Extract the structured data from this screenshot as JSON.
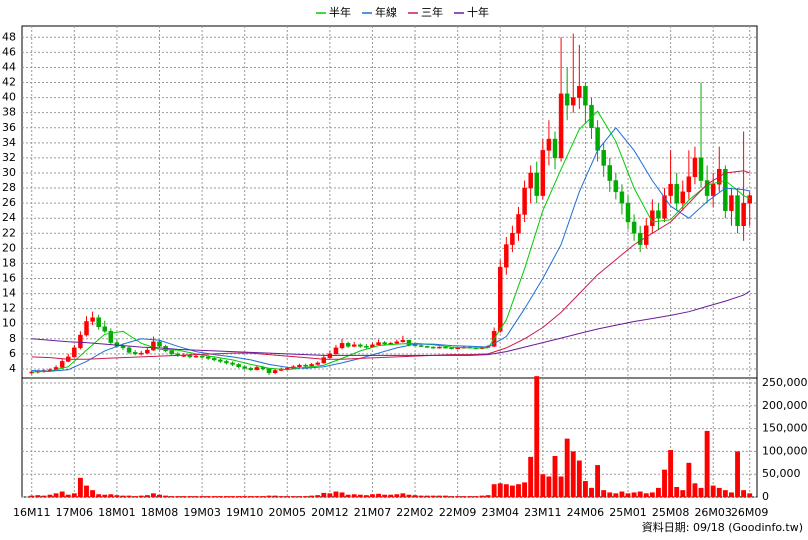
{
  "chart_data": [
    {
      "type": "candlestick",
      "xlim": [
        -1.6,
        119.2
      ],
      "ylim": [
        2.8,
        49.5
      ],
      "yticks": [
        4,
        6,
        8,
        10,
        12,
        14,
        16,
        18,
        20,
        22,
        24,
        26,
        28,
        30,
        32,
        34,
        36,
        38,
        40,
        42,
        44,
        46,
        48
      ],
      "grid": true,
      "legend": "top",
      "up_color": "#ff0000",
      "down_color": "#00aa00",
      "ohlc": [
        [
          3.5,
          3.8,
          3.3,
          3.6
        ],
        [
          3.6,
          3.9,
          3.4,
          3.7
        ],
        [
          3.7,
          4.0,
          3.5,
          3.8
        ],
        [
          3.8,
          4.1,
          3.6,
          3.9
        ],
        [
          3.9,
          4.5,
          3.8,
          4.2
        ],
        [
          4.2,
          5.3,
          4.1,
          5.0
        ],
        [
          5.0,
          6.0,
          4.9,
          5.6
        ],
        [
          5.6,
          7.2,
          5.5,
          6.8
        ],
        [
          6.8,
          9.0,
          6.6,
          8.5
        ],
        [
          8.5,
          11.0,
          8.3,
          10.3
        ],
        [
          10.3,
          11.6,
          9.8,
          10.8
        ],
        [
          10.8,
          11.2,
          9.2,
          9.6
        ],
        [
          9.6,
          10.4,
          8.8,
          9.0
        ],
        [
          9.0,
          9.4,
          7.2,
          7.5
        ],
        [
          7.5,
          7.9,
          6.8,
          7.0
        ],
        [
          7.0,
          7.4,
          6.5,
          6.8
        ],
        [
          6.8,
          7.0,
          6.0,
          6.2
        ],
        [
          6.2,
          6.5,
          5.8,
          6.0
        ],
        [
          6.0,
          6.4,
          5.8,
          6.1
        ],
        [
          6.1,
          6.9,
          6.0,
          6.5
        ],
        [
          6.5,
          8.3,
          6.4,
          7.6
        ],
        [
          7.6,
          7.8,
          6.8,
          7.0
        ],
        [
          7.0,
          7.2,
          6.2,
          6.4
        ],
        [
          6.4,
          6.6,
          5.8,
          6.0
        ],
        [
          6.0,
          6.2,
          5.6,
          5.8
        ],
        [
          5.8,
          6.1,
          5.6,
          5.8
        ],
        [
          5.8,
          6.0,
          5.4,
          5.6
        ],
        [
          5.6,
          5.9,
          5.5,
          5.7
        ],
        [
          5.7,
          5.9,
          5.4,
          5.6
        ],
        [
          5.6,
          5.8,
          5.2,
          5.4
        ],
        [
          5.4,
          5.6,
          5.0,
          5.2
        ],
        [
          5.2,
          5.4,
          4.8,
          5.0
        ],
        [
          5.0,
          5.2,
          4.6,
          4.8
        ],
        [
          4.8,
          5.0,
          4.4,
          4.6
        ],
        [
          4.6,
          4.8,
          4.1,
          4.3
        ],
        [
          4.3,
          4.5,
          3.9,
          4.1
        ],
        [
          4.1,
          4.3,
          3.7,
          3.9
        ],
        [
          3.9,
          4.5,
          3.8,
          4.2
        ],
        [
          4.2,
          4.4,
          3.8,
          4.0
        ],
        [
          4.0,
          4.1,
          3.2,
          3.5
        ],
        [
          3.5,
          4.0,
          3.3,
          3.8
        ],
        [
          3.8,
          4.2,
          3.7,
          4.0
        ],
        [
          4.0,
          4.3,
          3.9,
          4.1
        ],
        [
          4.1,
          4.5,
          4.0,
          4.3
        ],
        [
          4.3,
          4.7,
          4.2,
          4.5
        ],
        [
          4.5,
          4.7,
          4.2,
          4.4
        ],
        [
          4.4,
          4.8,
          4.3,
          4.6
        ],
        [
          4.6,
          5.0,
          4.5,
          4.8
        ],
        [
          4.8,
          5.9,
          4.7,
          5.5
        ],
        [
          5.5,
          6.4,
          5.4,
          6.0
        ],
        [
          6.0,
          7.2,
          5.9,
          6.8
        ],
        [
          6.8,
          8.0,
          6.6,
          7.4
        ],
        [
          7.4,
          7.6,
          6.8,
          7.0
        ],
        [
          7.0,
          7.6,
          6.9,
          7.2
        ],
        [
          7.2,
          7.4,
          6.8,
          7.0
        ],
        [
          7.0,
          7.3,
          6.7,
          6.9
        ],
        [
          6.9,
          7.5,
          6.8,
          7.2
        ],
        [
          7.2,
          7.9,
          7.1,
          7.5
        ],
        [
          7.5,
          7.7,
          7.1,
          7.3
        ],
        [
          7.3,
          7.6,
          7.2,
          7.4
        ],
        [
          7.4,
          7.9,
          7.3,
          7.6
        ],
        [
          7.6,
          8.4,
          7.5,
          7.8
        ],
        [
          7.8,
          7.9,
          7.0,
          7.2
        ],
        [
          7.2,
          7.4,
          7.0,
          7.1
        ],
        [
          7.1,
          7.3,
          6.9,
          7.0
        ],
        [
          7.0,
          7.1,
          6.8,
          6.9
        ],
        [
          6.9,
          7.0,
          6.7,
          6.8
        ],
        [
          6.8,
          7.0,
          6.7,
          6.9
        ],
        [
          6.9,
          7.0,
          6.7,
          6.8
        ],
        [
          6.8,
          6.9,
          6.6,
          6.7
        ],
        [
          6.7,
          6.9,
          6.6,
          6.8
        ],
        [
          6.8,
          7.0,
          6.7,
          6.9
        ],
        [
          6.9,
          7.0,
          6.7,
          6.8
        ],
        [
          6.8,
          6.9,
          6.6,
          6.7
        ],
        [
          6.7,
          7.0,
          6.6,
          6.9
        ],
        [
          6.9,
          7.2,
          6.8,
          7.0
        ],
        [
          7.0,
          9.5,
          6.9,
          9.0
        ],
        [
          9.0,
          18.5,
          8.8,
          17.5
        ],
        [
          17.5,
          21.5,
          16.5,
          20.5
        ],
        [
          20.5,
          23.0,
          19.5,
          22.0
        ],
        [
          22.0,
          25.5,
          21.0,
          24.5
        ],
        [
          24.5,
          29.0,
          23.5,
          28.0
        ],
        [
          28.0,
          31.0,
          26.0,
          30.0
        ],
        [
          30.0,
          31.5,
          26.0,
          27.0
        ],
        [
          27.0,
          34.5,
          26.5,
          33.0
        ],
        [
          33.0,
          37.0,
          31.0,
          34.5
        ],
        [
          34.5,
          35.5,
          30.5,
          32.0
        ],
        [
          32.0,
          48.0,
          31.5,
          40.5
        ],
        [
          40.5,
          44.0,
          37.0,
          39.0
        ],
        [
          39.0,
          48.5,
          38.0,
          40.0
        ],
        [
          40.0,
          47.0,
          38.5,
          41.5
        ],
        [
          41.5,
          42.0,
          36.5,
          39.0
        ],
        [
          39.0,
          40.0,
          34.5,
          36.0
        ],
        [
          36.0,
          37.0,
          31.5,
          33.0
        ],
        [
          33.0,
          34.0,
          29.5,
          31.0
        ],
        [
          31.0,
          32.0,
          27.5,
          29.0
        ],
        [
          29.0,
          30.0,
          26.5,
          27.5
        ],
        [
          27.5,
          28.5,
          24.5,
          26.0
        ],
        [
          26.0,
          27.0,
          22.5,
          23.5
        ],
        [
          23.5,
          24.5,
          21.0,
          22.0
        ],
        [
          22.0,
          23.0,
          19.5,
          20.5
        ],
        [
          20.5,
          24.0,
          20.0,
          23.0
        ],
        [
          23.0,
          26.5,
          22.0,
          25.0
        ],
        [
          25.0,
          26.0,
          22.5,
          24.0
        ],
        [
          24.0,
          28.0,
          23.5,
          27.0
        ],
        [
          27.0,
          33.0,
          26.0,
          28.5
        ],
        [
          28.5,
          30.0,
          25.0,
          26.0
        ],
        [
          26.0,
          29.0,
          25.0,
          27.5
        ],
        [
          27.5,
          33.0,
          26.5,
          29.5
        ],
        [
          29.5,
          33.5,
          28.5,
          32.0
        ],
        [
          32.0,
          42.0,
          28.0,
          29.0
        ],
        [
          29.0,
          31.0,
          26.0,
          27.0
        ],
        [
          27.0,
          30.0,
          25.5,
          28.5
        ],
        [
          28.5,
          33.5,
          27.5,
          30.5
        ],
        [
          30.5,
          31.0,
          24.0,
          25.0
        ],
        [
          25.0,
          28.0,
          23.0,
          27.0
        ],
        [
          27.0,
          28.0,
          22.0,
          23.0
        ],
        [
          23.0,
          35.5,
          21.0,
          26.0
        ],
        [
          26.0,
          27.5,
          23.0,
          27.0
        ]
      ],
      "x": [
        0,
        3,
        6,
        9,
        12,
        15,
        18,
        21,
        24,
        27,
        30,
        33,
        36,
        39,
        42,
        45,
        48,
        51,
        54,
        57,
        60,
        63,
        66,
        69,
        72,
        75,
        78,
        81,
        84,
        87,
        90,
        93,
        96,
        99,
        102,
        105,
        108,
        111,
        114,
        117,
        118
      ],
      "series": [
        {
          "name": "半年",
          "color": "#00cc00",
          "values": [
            3.6,
            3.7,
            4.3,
            6.5,
            8.6,
            9.0,
            7.4,
            6.6,
            6.5,
            6.0,
            5.6,
            5.2,
            4.6,
            4.1,
            3.9,
            4.2,
            4.5,
            5.4,
            6.4,
            7.1,
            7.3,
            7.4,
            7.2,
            6.9,
            6.8,
            6.8,
            10.5,
            17.3,
            25.0,
            30.5,
            35.8,
            38.2,
            34.2,
            28.0,
            23.5,
            23.8,
            26.4,
            28.4,
            29.0,
            27.0,
            26.6
          ]
        },
        {
          "name": "年線",
          "color": "#1e6fd9",
          "values": [
            3.8,
            3.7,
            3.9,
            5.0,
            6.4,
            7.3,
            8.0,
            7.8,
            7.0,
            6.3,
            5.9,
            5.6,
            5.2,
            4.6,
            4.2,
            4.1,
            4.3,
            4.8,
            5.4,
            6.1,
            6.8,
            7.3,
            7.3,
            7.1,
            7.0,
            6.9,
            8.3,
            12.0,
            16.0,
            20.5,
            27.5,
            33.0,
            36.0,
            33.0,
            29.0,
            25.6,
            24.0,
            26.2,
            28.0,
            27.8,
            27.6
          ]
        },
        {
          "name": "三年",
          "color": "#cc1a4a",
          "values": [
            5.6,
            5.5,
            5.3,
            5.3,
            5.4,
            5.5,
            5.6,
            5.7,
            5.8,
            5.9,
            6.0,
            6.1,
            6.1,
            5.9,
            5.7,
            5.5,
            5.3,
            5.3,
            5.4,
            5.5,
            5.6,
            5.7,
            5.8,
            5.9,
            5.9,
            6.0,
            6.8,
            8.0,
            9.5,
            11.5,
            14.0,
            16.5,
            18.5,
            20.5,
            22.0,
            23.5,
            26.0,
            28.5,
            30.0,
            30.3,
            30.0
          ]
        },
        {
          "name": "十年",
          "color": "#6a1b9a",
          "values": [
            8.0,
            7.8,
            7.6,
            7.5,
            7.3,
            7.1,
            6.9,
            6.8,
            6.6,
            6.5,
            6.4,
            6.3,
            6.2,
            6.1,
            6.0,
            5.9,
            5.8,
            5.8,
            5.8,
            5.8,
            5.8,
            5.8,
            5.8,
            5.8,
            5.8,
            5.9,
            6.3,
            6.9,
            7.5,
            8.1,
            8.7,
            9.3,
            9.8,
            10.3,
            10.7,
            11.1,
            11.6,
            12.3,
            13.0,
            13.8,
            14.3
          ]
        }
      ]
    },
    {
      "type": "bar",
      "color": "#ff0000",
      "xlim": [
        -1.6,
        119.2
      ],
      "ylim": [
        0,
        261000
      ],
      "grid": true,
      "yticks": [
        0,
        {
          "value": 50000,
          "label": "50,000"
        },
        {
          "value": 100000,
          "label": "100,000"
        },
        {
          "value": 150000,
          "label": "150,000"
        },
        {
          "value": 200000,
          "label": "200,000"
        },
        {
          "value": 250000,
          "label": "250,000"
        }
      ],
      "xticks": [
        {
          "value": 0,
          "label": "16M11"
        },
        {
          "value": 7,
          "label": "17M06"
        },
        {
          "value": 14,
          "label": "18M01"
        },
        {
          "value": 21,
          "label": "18M08"
        },
        {
          "value": 28,
          "label": "19M03"
        },
        {
          "value": 35,
          "label": "19M10"
        },
        {
          "value": 42,
          "label": "20M05"
        },
        {
          "value": 49,
          "label": "20M12"
        },
        {
          "value": 56,
          "label": "21M07"
        },
        {
          "value": 63,
          "label": "22M02"
        },
        {
          "value": 70,
          "label": "22M09"
        },
        {
          "value": 77,
          "label": "23M04"
        },
        {
          "value": 84,
          "label": "23M11"
        },
        {
          "value": 91,
          "label": "24M06"
        },
        {
          "value": 98,
          "label": "25M01"
        },
        {
          "value": 105,
          "label": "25M08"
        },
        {
          "value": 112,
          "label": "26M03"
        },
        {
          "value": 118,
          "label": "26M09"
        }
      ],
      "values": [
        3000,
        4000,
        3000,
        5000,
        8000,
        12000,
        5000,
        8000,
        42000,
        25000,
        15000,
        6000,
        5000,
        6000,
        4000,
        3000,
        3000,
        2000,
        3000,
        4000,
        8000,
        5000,
        3000,
        2000,
        2000,
        2000,
        2000,
        2000,
        2000,
        2000,
        2000,
        2000,
        2000,
        2000,
        2000,
        2000,
        2000,
        2000,
        2000,
        3000,
        3000,
        2000,
        2000,
        2000,
        2000,
        2000,
        3000,
        4000,
        9000,
        8000,
        12000,
        10000,
        5000,
        6000,
        5000,
        4000,
        6000,
        7000,
        5000,
        5000,
        6000,
        8000,
        5000,
        4000,
        3000,
        3000,
        3000,
        3000,
        3000,
        2000,
        2000,
        2000,
        2000,
        2000,
        3000,
        4000,
        28000,
        30000,
        28000,
        25000,
        28000,
        32000,
        88000,
        265000,
        50000,
        45000,
        90000,
        45000,
        128000,
        100000,
        80000,
        35000,
        20000,
        70000,
        15000,
        10000,
        8000,
        12000,
        8000,
        10000,
        12000,
        8000,
        10000,
        20000,
        60000,
        103000,
        22000,
        15000,
        75000,
        30000,
        20000,
        145000,
        25000,
        20000,
        15000,
        10000,
        100000,
        15000,
        8000
      ],
      "note": "資料日期: 09/18 (Goodinfo.tw)"
    }
  ]
}
